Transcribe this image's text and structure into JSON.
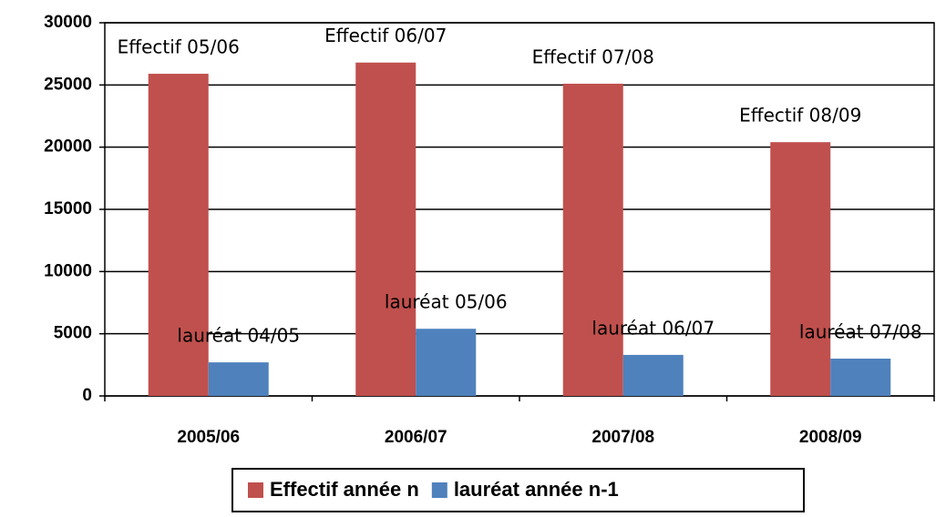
{
  "chart_data": {
    "type": "bar",
    "categories": [
      "2005/06",
      "2006/07",
      "2007/08",
      "2008/09"
    ],
    "series": [
      {
        "name": "Effectif année n",
        "color": "#c0504d",
        "values": [
          25900,
          26800,
          25100,
          20400
        ],
        "labels": [
          "Effectif 05/06",
          "Effectif 06/07",
          "Effectif 07/08",
          "Effectif 08/09"
        ]
      },
      {
        "name": "lauréat année n-1",
        "color": "#4f81bd",
        "values": [
          2700,
          5400,
          3300,
          3000
        ],
        "labels": [
          "lauréat 04/05",
          "lauréat 05/06",
          "lauréat 06/07",
          "lauréat 07/08"
        ]
      }
    ],
    "ylim": [
      0,
      30000
    ],
    "yticks": [
      0,
      5000,
      10000,
      15000,
      20000,
      25000,
      30000
    ],
    "grid": true
  }
}
